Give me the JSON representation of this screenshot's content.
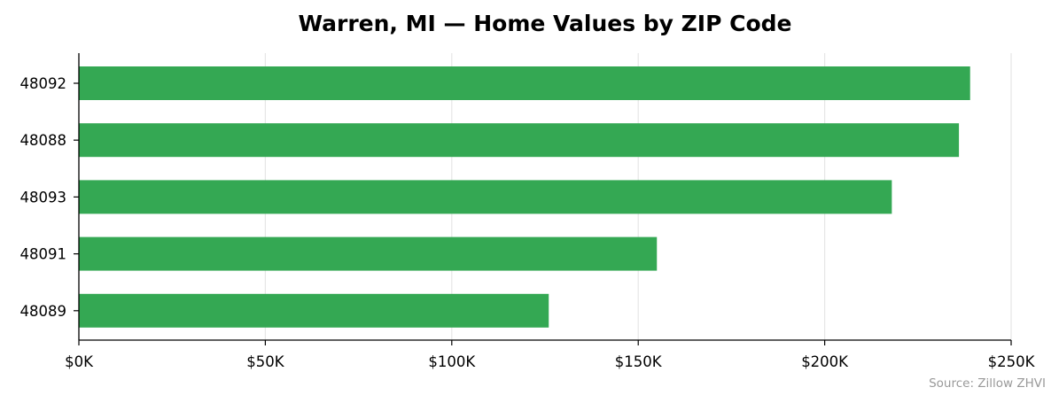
{
  "chart_data": {
    "type": "bar",
    "orientation": "horizontal",
    "title": "Warren, MI — Home Values by ZIP Code",
    "xlabel": "",
    "ylabel": "",
    "categories": [
      "48092",
      "48088",
      "48093",
      "48091",
      "48089"
    ],
    "values": [
      239000,
      236000,
      218000,
      155000,
      126000
    ],
    "xlim": [
      0,
      250000
    ],
    "xticks": [
      0,
      50000,
      100000,
      150000,
      200000,
      250000
    ],
    "xtick_labels": [
      "$0K",
      "$50K",
      "$100K",
      "$150K",
      "$200K",
      "$250K"
    ],
    "bar_color": "#34a853",
    "grid": "vertical",
    "legend": "none",
    "source": "Source: Zillow ZHVI"
  }
}
